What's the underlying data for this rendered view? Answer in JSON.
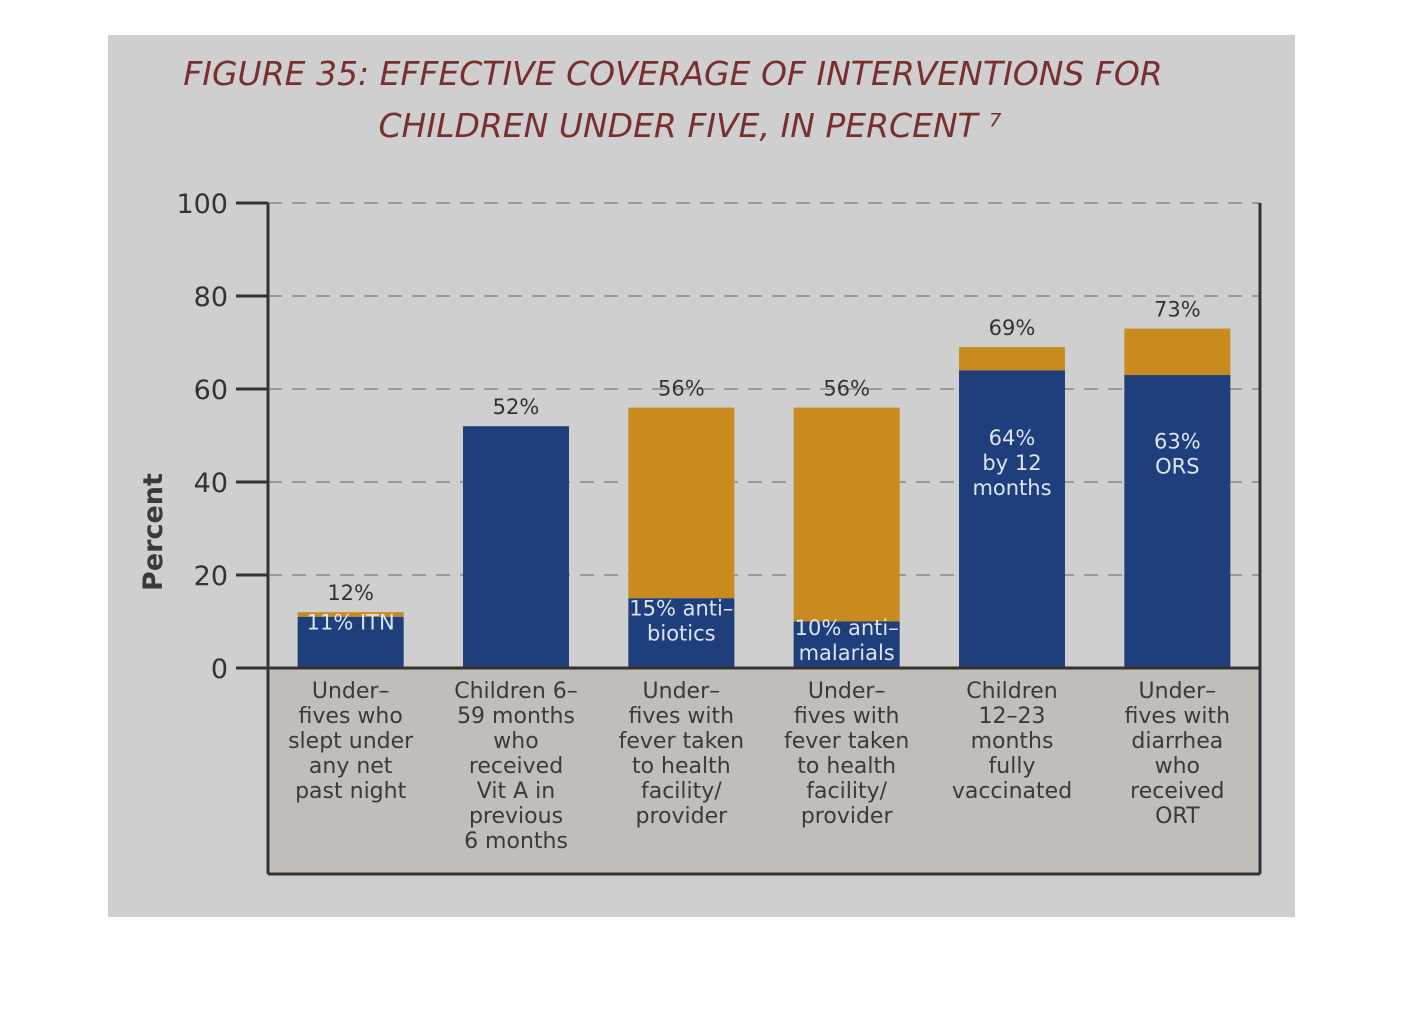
{
  "chart_data": {
    "type": "bar",
    "title_lines": [
      "FIGURE 35: EFFECTIVE COVERAGE OF INTERVENTIONS FOR",
      "CHILDREN UNDER FIVE, IN PERCENT ⁷"
    ],
    "ylabel": "Percent",
    "ylim": [
      0,
      100
    ],
    "yticks": [
      "0",
      "20",
      "40",
      "60",
      "80",
      "100"
    ],
    "grid": true,
    "categories": [
      {
        "lines": [
          "Under–",
          "fives who",
          "slept under",
          "any net",
          "past night"
        ]
      },
      {
        "lines": [
          "Children 6–",
          "59 months",
          "who",
          "received",
          "Vit A in",
          "previous",
          "6 months"
        ]
      },
      {
        "lines": [
          "Under–",
          "fives with",
          "fever taken",
          "to health",
          "facility/",
          "provider"
        ]
      },
      {
        "lines": [
          "Under–",
          "fives with",
          "fever taken",
          "to health",
          "facility/",
          "provider"
        ]
      },
      {
        "lines": [
          "Children",
          "12–23",
          "months",
          "fully",
          "vaccinated"
        ]
      },
      {
        "lines": [
          "Under–",
          "fives with",
          "diarrhea",
          "who",
          "received",
          "ORT"
        ]
      }
    ],
    "total_values": [
      12,
      52,
      56,
      56,
      69,
      73
    ],
    "total_labels": [
      "12%",
      "52%",
      "56%",
      "56%",
      "69%",
      "73%"
    ],
    "sub_values": [
      11,
      52,
      15,
      10,
      64,
      63
    ],
    "sub_labels": [
      [
        "11% ITN"
      ],
      [],
      [
        "15% anti–",
        "biotics"
      ],
      [
        "10% anti–",
        "malarials"
      ],
      [
        "64%",
        "by 12",
        "months"
      ],
      [
        "63%",
        "ORS"
      ]
    ],
    "colors": {
      "sub": "#1f3f7c",
      "rest": "#c98a1f",
      "panel": "#cfcfcf",
      "axis": "#333333",
      "grid": "#9a9a9a"
    }
  }
}
